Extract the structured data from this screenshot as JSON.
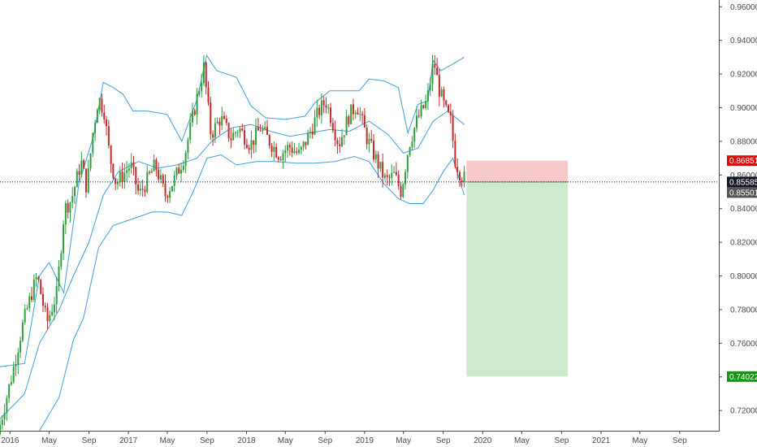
{
  "chart_data": {
    "type": "candlestick",
    "grid": false,
    "x_axis": {
      "range": [
        "2015-12-01",
        "2021-12-31"
      ],
      "ticks": [
        {
          "label": "2016",
          "date": "2016-01-01"
        },
        {
          "label": "May",
          "date": "2016-05-01"
        },
        {
          "label": "Sep",
          "date": "2016-09-01"
        },
        {
          "label": "2017",
          "date": "2017-01-01"
        },
        {
          "label": "May",
          "date": "2017-05-01"
        },
        {
          "label": "Sep",
          "date": "2017-09-01"
        },
        {
          "label": "2018",
          "date": "2018-01-01"
        },
        {
          "label": "May",
          "date": "2018-05-01"
        },
        {
          "label": "Sep",
          "date": "2018-09-01"
        },
        {
          "label": "2019",
          "date": "2019-01-01"
        },
        {
          "label": "May",
          "date": "2019-05-01"
        },
        {
          "label": "Sep",
          "date": "2019-09-01"
        },
        {
          "label": "2020",
          "date": "2020-01-01"
        },
        {
          "label": "May",
          "date": "2020-05-01"
        },
        {
          "label": "Sep",
          "date": "2020-09-01"
        },
        {
          "label": "2021",
          "date": "2021-01-01"
        },
        {
          "label": "May",
          "date": "2021-05-01"
        },
        {
          "label": "Sep",
          "date": "2021-09-01"
        }
      ]
    },
    "y_axis": {
      "range": [
        0.708,
        0.964
      ],
      "position": "right",
      "ticks": [
        0.72,
        0.74,
        0.76,
        0.78,
        0.8,
        0.82,
        0.84,
        0.86,
        0.88,
        0.9,
        0.92,
        0.94,
        0.96
      ],
      "tick_labels": [
        "0.72000",
        "0.74000",
        "0.76000",
        "0.78000",
        "0.80000",
        "0.82000",
        "0.84000",
        "0.86000",
        "0.88000",
        "0.90000",
        "0.92000",
        "0.94000",
        "0.96000"
      ]
    },
    "price_path": [
      [
        "2015-12-01",
        0.706
      ],
      [
        "2016-01-15",
        0.742
      ],
      [
        "2016-02-15",
        0.77
      ],
      [
        "2016-03-15",
        0.79
      ],
      [
        "2016-04-01",
        0.8
      ],
      [
        "2016-05-01",
        0.772
      ],
      [
        "2016-06-01",
        0.79
      ],
      [
        "2016-06-24",
        0.84
      ],
      [
        "2016-07-15",
        0.845
      ],
      [
        "2016-08-15",
        0.868
      ],
      [
        "2016-09-01",
        0.852
      ],
      [
        "2016-09-20",
        0.885
      ],
      [
        "2016-10-07",
        0.906
      ],
      [
        "2016-10-25",
        0.898
      ],
      [
        "2016-11-10",
        0.872
      ],
      [
        "2016-12-01",
        0.855
      ],
      [
        "2017-01-15",
        0.866
      ],
      [
        "2017-02-10",
        0.848
      ],
      [
        "2017-03-10",
        0.858
      ],
      [
        "2017-04-01",
        0.866
      ],
      [
        "2017-05-01",
        0.848
      ],
      [
        "2017-06-01",
        0.858
      ],
      [
        "2017-07-01",
        0.872
      ],
      [
        "2017-08-01",
        0.9
      ],
      [
        "2017-08-29",
        0.924
      ],
      [
        "2017-09-20",
        0.884
      ],
      [
        "2017-10-20",
        0.894
      ],
      [
        "2017-11-20",
        0.882
      ],
      [
        "2017-12-15",
        0.888
      ],
      [
        "2018-01-20",
        0.878
      ],
      [
        "2018-02-20",
        0.888
      ],
      [
        "2018-03-20",
        0.88
      ],
      [
        "2018-04-20",
        0.872
      ],
      [
        "2018-05-20",
        0.877
      ],
      [
        "2018-06-20",
        0.872
      ],
      [
        "2018-07-20",
        0.884
      ],
      [
        "2018-08-20",
        0.898
      ],
      [
        "2018-09-10",
        0.904
      ],
      [
        "2018-09-30",
        0.892
      ],
      [
        "2018-10-20",
        0.878
      ],
      [
        "2018-11-20",
        0.895
      ],
      [
        "2018-12-15",
        0.902
      ],
      [
        "2019-01-15",
        0.882
      ],
      [
        "2019-02-15",
        0.868
      ],
      [
        "2019-03-15",
        0.856
      ],
      [
        "2019-04-10",
        0.86
      ],
      [
        "2019-05-01",
        0.85
      ],
      [
        "2019-05-25",
        0.878
      ],
      [
        "2019-06-20",
        0.893
      ],
      [
        "2019-07-20",
        0.904
      ],
      [
        "2019-08-10",
        0.928
      ],
      [
        "2019-08-25",
        0.912
      ],
      [
        "2019-09-15",
        0.898
      ],
      [
        "2019-10-01",
        0.892
      ],
      [
        "2019-10-15",
        0.869
      ],
      [
        "2019-10-28",
        0.862
      ],
      [
        "2019-11-10",
        0.858
      ]
    ],
    "bollinger_bands": {
      "upper": [
        [
          "2015-12-01",
          0.746
        ],
        [
          "2016-02-15",
          0.748
        ],
        [
          "2016-04-01",
          0.8
        ],
        [
          "2016-05-01",
          0.808
        ],
        [
          "2016-06-15",
          0.79
        ],
        [
          "2016-08-01",
          0.855
        ],
        [
          "2016-09-15",
          0.883
        ],
        [
          "2016-10-15",
          0.915
        ],
        [
          "2016-11-15",
          0.912
        ],
        [
          "2016-12-15",
          0.908
        ],
        [
          "2017-01-15",
          0.898
        ],
        [
          "2017-03-01",
          0.898
        ],
        [
          "2017-05-01",
          0.896
        ],
        [
          "2017-06-15",
          0.88
        ],
        [
          "2017-08-01",
          0.905
        ],
        [
          "2017-08-31",
          0.931
        ],
        [
          "2017-10-01",
          0.922
        ],
        [
          "2017-12-01",
          0.918
        ],
        [
          "2018-01-15",
          0.901
        ],
        [
          "2018-03-01",
          0.894
        ],
        [
          "2018-05-01",
          0.893
        ],
        [
          "2018-07-01",
          0.895
        ],
        [
          "2018-08-01",
          0.903
        ],
        [
          "2018-09-15",
          0.91
        ],
        [
          "2018-11-01",
          0.91
        ],
        [
          "2018-12-15",
          0.91
        ],
        [
          "2019-01-15",
          0.917
        ],
        [
          "2019-03-01",
          0.916
        ],
        [
          "2019-04-15",
          0.912
        ],
        [
          "2019-05-15",
          0.885
        ],
        [
          "2019-06-15",
          0.902
        ],
        [
          "2019-07-15",
          0.904
        ],
        [
          "2019-08-01",
          0.928
        ],
        [
          "2019-08-25",
          0.922
        ],
        [
          "2019-10-01",
          0.926
        ],
        [
          "2019-11-05",
          0.93
        ]
      ],
      "middle": [
        [
          "2015-12-01",
          0.715
        ],
        [
          "2016-02-15",
          0.73
        ],
        [
          "2016-04-01",
          0.76
        ],
        [
          "2016-06-01",
          0.78
        ],
        [
          "2016-07-15",
          0.8
        ],
        [
          "2016-09-01",
          0.82
        ],
        [
          "2016-10-15",
          0.848
        ],
        [
          "2016-12-01",
          0.862
        ],
        [
          "2017-02-01",
          0.868
        ],
        [
          "2017-04-01",
          0.864
        ],
        [
          "2017-06-01",
          0.866
        ],
        [
          "2017-08-01",
          0.87
        ],
        [
          "2017-09-15",
          0.88
        ],
        [
          "2017-11-15",
          0.888
        ],
        [
          "2018-01-15",
          0.89
        ],
        [
          "2018-03-15",
          0.886
        ],
        [
          "2018-05-15",
          0.883
        ],
        [
          "2018-07-15",
          0.885
        ],
        [
          "2018-09-15",
          0.887
        ],
        [
          "2018-11-15",
          0.886
        ],
        [
          "2019-01-15",
          0.892
        ],
        [
          "2019-03-15",
          0.884
        ],
        [
          "2019-05-01",
          0.873
        ],
        [
          "2019-06-15",
          0.876
        ],
        [
          "2019-08-01",
          0.892
        ],
        [
          "2019-09-15",
          0.898
        ],
        [
          "2019-11-05",
          0.89
        ]
      ],
      "lower": [
        [
          "2016-04-01",
          0.708
        ],
        [
          "2016-06-01",
          0.728
        ],
        [
          "2016-07-15",
          0.762
        ],
        [
          "2016-08-15",
          0.775
        ],
        [
          "2016-10-01",
          0.817
        ],
        [
          "2016-11-15",
          0.83
        ],
        [
          "2017-01-15",
          0.834
        ],
        [
          "2017-03-15",
          0.838
        ],
        [
          "2017-05-01",
          0.838
        ],
        [
          "2017-06-15",
          0.836
        ],
        [
          "2017-07-20",
          0.85
        ],
        [
          "2017-09-01",
          0.87
        ],
        [
          "2017-10-15",
          0.872
        ],
        [
          "2017-12-01",
          0.866
        ],
        [
          "2018-02-01",
          0.868
        ],
        [
          "2018-04-01",
          0.868
        ],
        [
          "2018-06-01",
          0.867
        ],
        [
          "2018-08-01",
          0.867
        ],
        [
          "2018-10-01",
          0.868
        ],
        [
          "2018-12-01",
          0.871
        ],
        [
          "2019-01-15",
          0.868
        ],
        [
          "2019-03-01",
          0.855
        ],
        [
          "2019-04-15",
          0.846
        ],
        [
          "2019-05-20",
          0.843
        ],
        [
          "2019-07-01",
          0.843
        ],
        [
          "2019-08-01",
          0.851
        ],
        [
          "2019-09-01",
          0.862
        ],
        [
          "2019-10-01",
          0.87
        ],
        [
          "2019-11-05",
          0.848
        ]
      ]
    },
    "position_tool": {
      "start_date": "2019-11-12",
      "end_date": "2020-09-20",
      "entry": 0.85585,
      "stop": 0.86851,
      "target": 0.74022,
      "risk_color": "#f8c9c9",
      "reward_color": "#cdebcc"
    },
    "price_tags": [
      {
        "label": "0.86851",
        "value": 0.86851,
        "color": "#ee0000"
      },
      {
        "label": "0.85585",
        "value": 0.85585,
        "color": "#131722"
      },
      {
        "label": "0.85501",
        "value": 0.85501,
        "color": "#555555"
      },
      {
        "label": "0.74022",
        "value": 0.74022,
        "color": "#0a9a0a"
      }
    ],
    "horizontal_line": {
      "value": 0.85585,
      "style": "dotted"
    },
    "colors": {
      "up_candle": "#2e9e41",
      "down_candle": "#c62828",
      "bands": "#3da0dc",
      "axis": "#4a4a4a"
    }
  }
}
